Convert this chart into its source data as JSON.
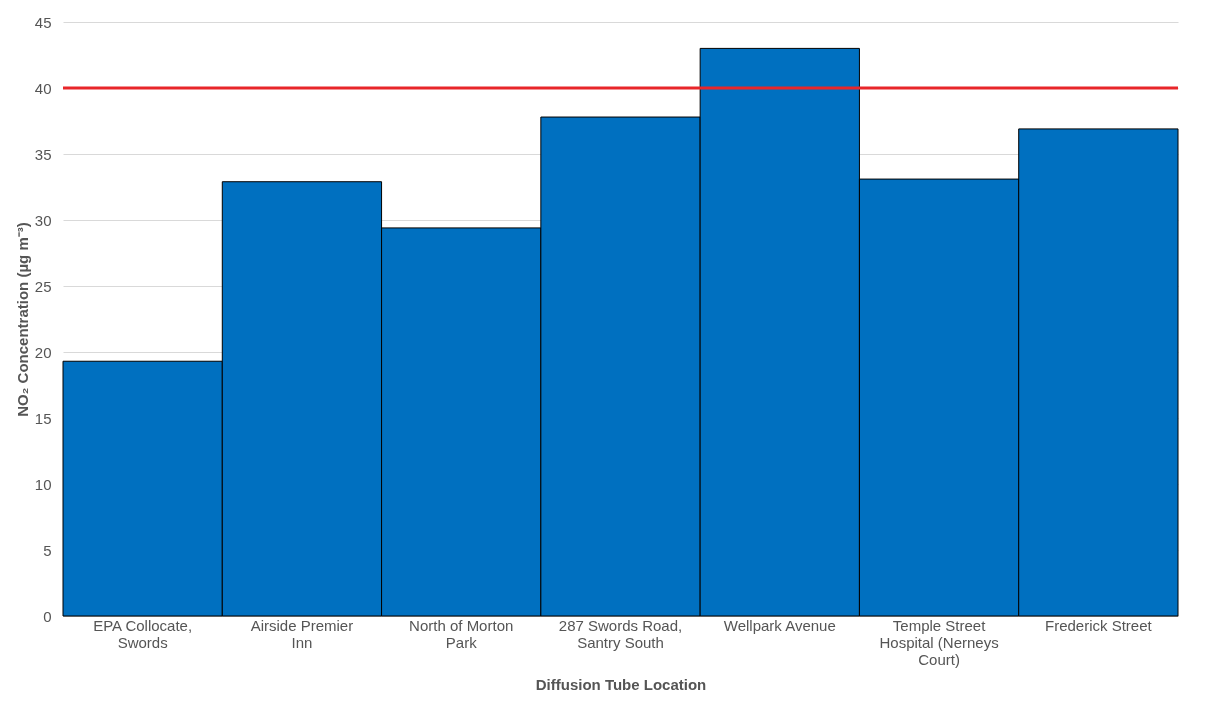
{
  "chart_data": {
    "type": "bar",
    "xlabel": "Diffusion Tube Location",
    "ylabel": "NO₂ Concentration (µg m⁻³)",
    "categories": [
      "EPA Collocate, Swords",
      "Airside Premier Inn",
      "North of Morton Park",
      "287 Swords Road, Santry South",
      "Wellpark Avenue",
      "Temple Street Hospital (Nerneys Court)",
      "Frederick Street"
    ],
    "values": [
      19.3,
      32.9,
      29.4,
      37.8,
      43.0,
      33.1,
      36.9
    ],
    "color": "#0070c0",
    "ylim": [
      0,
      45
    ],
    "yticks": [
      0,
      5,
      10,
      15,
      20,
      25,
      30,
      35,
      40,
      45
    ],
    "grid": "y",
    "ref_lines": [
      {
        "axis": "y",
        "value": 40,
        "color": "#e8262a"
      }
    ]
  }
}
